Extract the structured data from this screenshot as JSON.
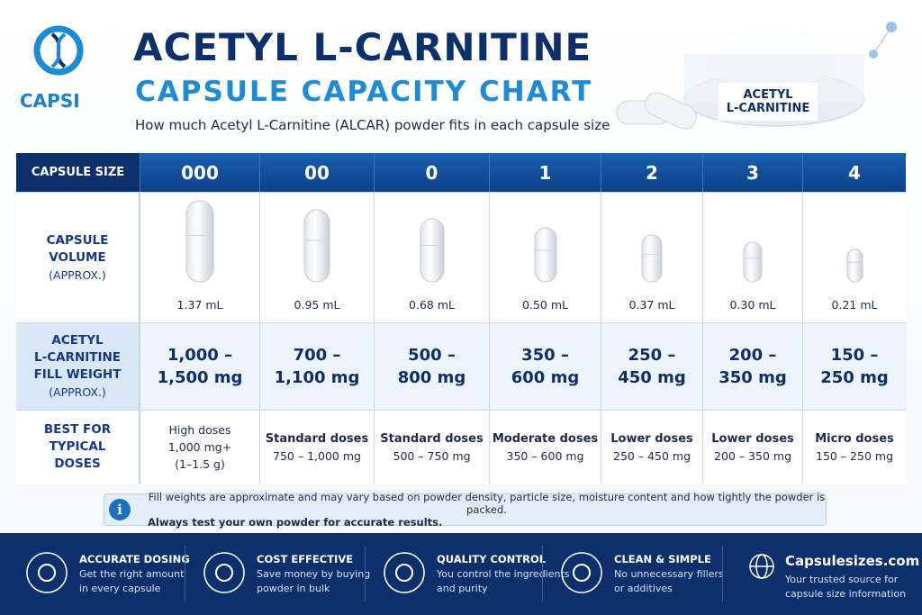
{
  "header": {
    "logo": "CAPSI",
    "title": "ACETYL L-CARNITINE",
    "subtitle": "CAPSULE CAPACITY CHART",
    "description": "How much Acetyl L-Carnitine (ALCAR) powder fits in each capsule size",
    "image_label": [
      "ACETYL",
      "L-CARNITINE"
    ]
  },
  "table": {
    "corner": "CAPSULE SIZE",
    "sizes": [
      "000",
      "00",
      "0",
      "1",
      "2",
      "3",
      "4"
    ],
    "rows": [
      {
        "label": [
          "CAPSULE",
          "VOLUME",
          "(APPROX.)"
        ],
        "values": [
          [
            "1.37 mL"
          ],
          [
            "0.95 mL"
          ],
          [
            "0.68 mL"
          ],
          [
            "0.50 mL"
          ],
          [
            "0.37 mL"
          ],
          [
            "0.30 mL"
          ],
          [
            "0.21 mL"
          ]
        ]
      },
      {
        "label": [
          "ACETYL",
          "L-CARNITINE",
          "FILL WEIGHT",
          "(APPROX.)"
        ],
        "values": [
          [
            "1,000 –",
            "1,500 mg"
          ],
          [
            "700 –",
            "1,100 mg"
          ],
          [
            "500 –",
            "800 mg"
          ],
          [
            "350 –",
            "600 mg"
          ],
          [
            "250 –",
            "450 mg"
          ],
          [
            "200 –",
            "350 mg"
          ],
          [
            "150 –",
            "250 mg"
          ]
        ]
      },
      {
        "label": [
          "BEST FOR",
          "TYPICAL",
          "DOSES"
        ],
        "values": [
          [
            "High doses",
            "1,000 mg+",
            "(1–1.5 g)"
          ],
          [
            "Standard doses",
            "750 – 1,000 mg"
          ],
          [
            "Standard doses",
            "500 – 750 mg"
          ],
          [
            "Moderate doses",
            "350 – 600 mg"
          ],
          [
            "Lower doses",
            "250 – 450 mg"
          ],
          [
            "Lower doses",
            "200 – 350 mg"
          ],
          [
            "Micro doses",
            "150 – 250 mg"
          ]
        ]
      }
    ]
  },
  "note": [
    "Fill weights are approximate and may vary based on powder density, particle size, moisture content and how tightly the powder is packed.",
    "Always test your own powder for accurate results."
  ],
  "footer": [
    {
      "title": "ACCURATE DOSING",
      "lines": [
        "Get the right amount",
        "in every capsule"
      ]
    },
    {
      "title": "COST EFFECTIVE",
      "lines": [
        "Save money by buying",
        "powder in bulk"
      ]
    },
    {
      "title": "QUALITY CONTROL",
      "lines": [
        "You control the ingredients",
        "and purity"
      ]
    },
    {
      "title": "CLEAN & SIMPLE",
      "lines": [
        "No unnecessary fillers",
        "or additives"
      ]
    },
    {
      "title": "Capsulesizes.com",
      "lines": [
        "Your trusted source for",
        "capsule size information"
      ]
    }
  ]
}
